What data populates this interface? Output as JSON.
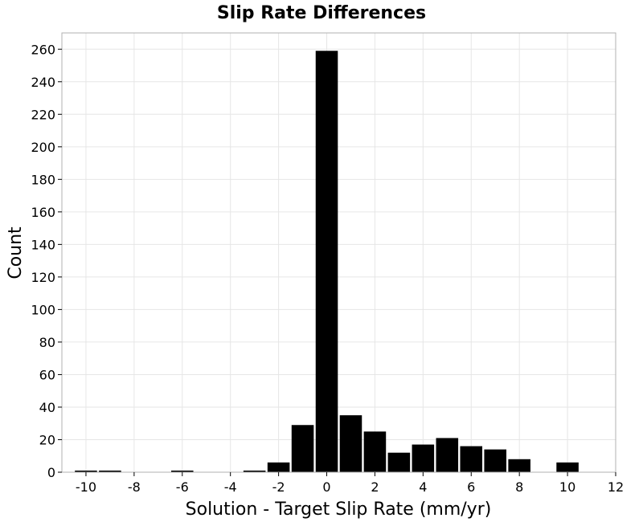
{
  "chart_data": {
    "type": "bar",
    "title": "Slip Rate Differences",
    "xlabel": "Solution - Target Slip Rate (mm/yr)",
    "ylabel": "Count",
    "xlim": [
      -11,
      12
    ],
    "ylim": [
      0,
      270
    ],
    "xticks": [
      -10,
      -8,
      -6,
      -4,
      -2,
      0,
      2,
      4,
      6,
      8,
      10,
      12
    ],
    "yticks": [
      0,
      20,
      40,
      60,
      80,
      100,
      120,
      140,
      160,
      180,
      200,
      220,
      240,
      260
    ],
    "bin_width": 1,
    "bar_color": "#000000",
    "grid": true,
    "bins": [
      {
        "x": -10,
        "count": 1
      },
      {
        "x": -9,
        "count": 1
      },
      {
        "x": -6,
        "count": 1
      },
      {
        "x": -3,
        "count": 1
      },
      {
        "x": -2,
        "count": 6
      },
      {
        "x": -1,
        "count": 29
      },
      {
        "x": 0,
        "count": 259
      },
      {
        "x": 1,
        "count": 35
      },
      {
        "x": 2,
        "count": 25
      },
      {
        "x": 3,
        "count": 12
      },
      {
        "x": 4,
        "count": 17
      },
      {
        "x": 5,
        "count": 21
      },
      {
        "x": 6,
        "count": 16
      },
      {
        "x": 7,
        "count": 14
      },
      {
        "x": 8,
        "count": 8
      },
      {
        "x": 10,
        "count": 6
      }
    ]
  }
}
